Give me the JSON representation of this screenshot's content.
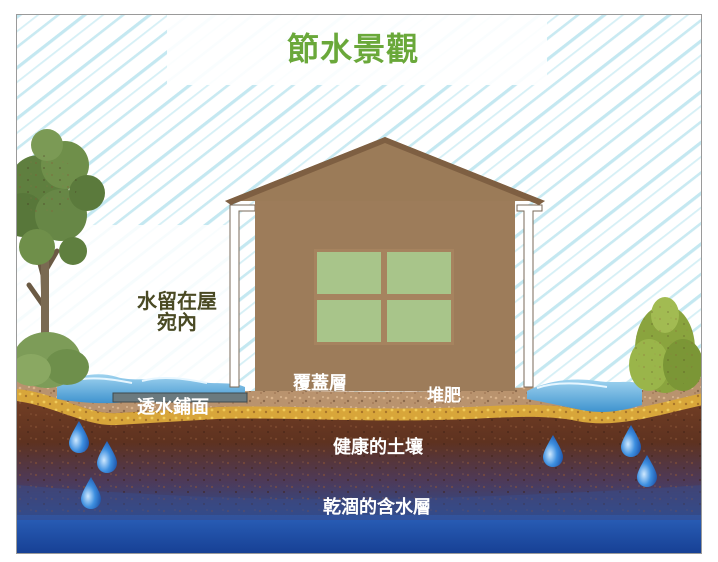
{
  "title": "節水景觀",
  "labels": {
    "roof_water": "水留在屋宛內",
    "permeable_paving": "透水鋪面",
    "mulch_layer": "覆蓋層",
    "compost": "堆肥",
    "healthy_soil": "健康的土壤",
    "dry_aquifer": "乾涸的含水層"
  },
  "colors": {
    "title": "#6aa83a",
    "rain": "#bfe6ef",
    "house_wall": "#a6835f",
    "roof": "#9b7b58",
    "window": "#a8c58a",
    "soil": "#6b3a22",
    "aquifer": "#1a4fa8",
    "water_pool": "#5aa9d9"
  }
}
